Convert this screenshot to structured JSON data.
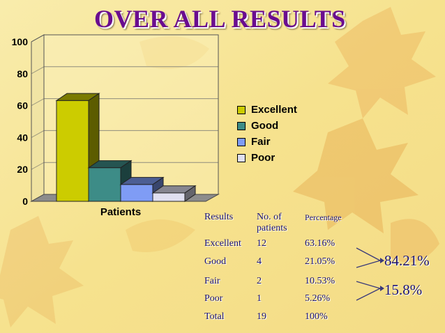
{
  "title": "OVER ALL RESULTS",
  "chart_data": {
    "type": "bar",
    "categories": [
      "Patients"
    ],
    "series": [
      {
        "name": "Excellent",
        "values": [
          63.16
        ],
        "color": "#cccc00"
      },
      {
        "name": "Good",
        "values": [
          21.05
        ],
        "color": "#3d8c87"
      },
      {
        "name": "Fair",
        "values": [
          10.53
        ],
        "color": "#7f9cf5"
      },
      {
        "name": "Poor",
        "values": [
          5.26
        ],
        "color": "#e0e0f0"
      }
    ],
    "ylim": [
      0,
      100
    ],
    "yticks": [
      "0",
      "20",
      "40",
      "60",
      "80",
      "100"
    ],
    "three_d": true,
    "grid": true,
    "legend_position": "right"
  },
  "results_table": {
    "headers": [
      "Results",
      "No. of patients",
      "Percentage"
    ],
    "rows": [
      [
        "Excellent",
        "12",
        "63.16%"
      ],
      [
        "Good",
        "4",
        "21.05%"
      ],
      [
        "Fair",
        "2",
        "10.53%"
      ],
      [
        "Poor",
        "1",
        "5.26%"
      ],
      [
        "Total",
        "19",
        "100%"
      ]
    ]
  },
  "summary": {
    "good_outcome": "84.21%",
    "other_outcome": "15.8%"
  }
}
